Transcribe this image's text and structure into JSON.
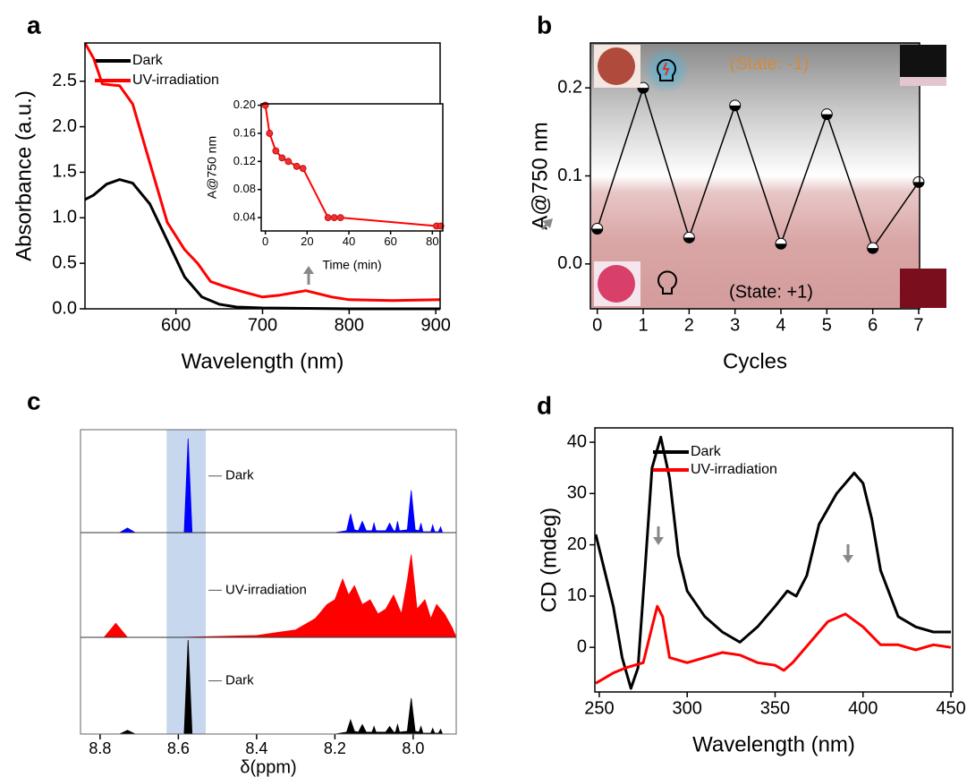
{
  "chart_data": [
    {
      "type": "line",
      "panel": "a",
      "xlabel": "Wavelength (nm)",
      "ylabel": "Absorbance (a.u.)",
      "xlim": [
        495,
        905
      ],
      "ylim": [
        0,
        2.92
      ],
      "xticks": [
        600,
        700,
        800,
        900
      ],
      "yticks": [
        {
          "value": 0,
          "label": "0.0"
        },
        0.5,
        {
          "value": 1,
          "label": "1.0"
        },
        1.5,
        {
          "value": 2,
          "label": "2.0"
        },
        2.5
      ],
      "legend": "upper left",
      "series": [
        {
          "name": "Dark",
          "color": "#000000",
          "x": [
            495,
            505,
            520,
            535,
            550,
            570,
            590,
            610,
            630,
            650,
            670,
            700,
            800,
            905
          ],
          "values": [
            1.2,
            1.25,
            1.37,
            1.42,
            1.38,
            1.15,
            0.75,
            0.35,
            0.13,
            0.05,
            0.02,
            0.01,
            0.0,
            0.0
          ]
        },
        {
          "name": "UV-irradiation",
          "color": "#ff0000",
          "x": [
            495,
            505,
            515,
            535,
            550,
            570,
            590,
            610,
            625,
            640,
            655,
            680,
            700,
            720,
            750,
            780,
            800,
            850,
            905
          ],
          "values": [
            2.92,
            2.75,
            2.47,
            2.45,
            2.25,
            1.6,
            0.95,
            0.65,
            0.5,
            0.3,
            0.25,
            0.18,
            0.13,
            0.15,
            0.2,
            0.13,
            0.1,
            0.09,
            0.1
          ]
        }
      ]
    },
    {
      "type": "line",
      "markers": true,
      "xlabel": "Time (min)",
      "ylabel": "A@750 nm",
      "xlim": [
        -2,
        85
      ],
      "ylim": [
        0.021,
        0.202
      ],
      "xticks": [
        0,
        20,
        40,
        60,
        80
      ],
      "yticks": [
        0.04,
        0.08,
        0.12,
        0.16,
        {
          "value": 0.2,
          "label": "0.20"
        }
      ],
      "series": [
        {
          "color": "#ff0000",
          "x": [
            0,
            2,
            5,
            8,
            11,
            15,
            18,
            30,
            33,
            36,
            82,
            84
          ],
          "values": [
            0.2,
            0.16,
            0.135,
            0.125,
            0.12,
            0.113,
            0.11,
            0.04,
            0.04,
            0.04,
            0.028,
            0.028
          ]
        }
      ]
    },
    {
      "type": "line",
      "markers": true,
      "panel": "b",
      "xlabel": "Cycles",
      "ylabel": "A@750 nm",
      "xlim": [
        -0.15,
        7.02
      ],
      "ylim": [
        -0.051,
        0.251
      ],
      "xticks": [
        0,
        1,
        2,
        3,
        4,
        5,
        6,
        7
      ],
      "yticks": [
        {
          "value": 0,
          "label": "0.0"
        },
        0.1,
        0.2
      ],
      "annotations": [
        "(State: -1)",
        "(State: +1)"
      ],
      "series": [
        {
          "color": "#000000",
          "x": [
            0,
            1,
            2,
            3,
            4,
            5,
            6,
            7
          ],
          "values": [
            0.04,
            0.2,
            0.03,
            0.18,
            0.023,
            0.17,
            0.018,
            0.093
          ]
        }
      ]
    },
    {
      "type": "spectrum",
      "panel": "c",
      "xlabel": "δ(ppm)",
      "xlim": [
        8.85,
        7.89
      ],
      "xticks": [
        8.8,
        8.6,
        8.4,
        8.2,
        {
          "value": 8,
          "label": "8.0"
        }
      ],
      "highlight_range": [
        8.63,
        8.53
      ],
      "series": [
        {
          "name": "Dark",
          "color": "#0000ff",
          "x": [
            8.85,
            8.75,
            8.73,
            8.71,
            8.6,
            8.585,
            8.575,
            8.565,
            8.55,
            8.2,
            8.17,
            8.16,
            8.15,
            8.14,
            8.13,
            8.12,
            8.105,
            8.1,
            8.095,
            8.07,
            8.06,
            8.05,
            8.045,
            8.04,
            8.035,
            8.015,
            8.005,
            7.995,
            7.985,
            7.98,
            7.975,
            7.955,
            7.95,
            7.945,
            7.935,
            7.93,
            7.925,
            7.89
          ],
          "values": [
            0,
            0,
            0.05,
            0,
            0,
            0,
            1,
            0,
            0,
            0,
            0.02,
            0.2,
            0.03,
            0.02,
            0.12,
            0.02,
            0.02,
            0.1,
            0.02,
            0.02,
            0.1,
            0.02,
            0.02,
            0.12,
            0.02,
            0.03,
            0.45,
            0.03,
            0.02,
            0.1,
            0.01,
            0.01,
            0.08,
            0.01,
            0.01,
            0.06,
            0,
            0
          ]
        },
        {
          "name": "UV-irradiation",
          "color": "#ff0000",
          "x": [
            8.85,
            8.79,
            8.76,
            8.73,
            8.6,
            8.4,
            8.3,
            8.25,
            8.22,
            8.2,
            8.18,
            8.165,
            8.15,
            8.13,
            8.11,
            8.09,
            8.07,
            8.05,
            8.03,
            8.015,
            8.005,
            7.99,
            7.97,
            7.955,
            7.94,
            7.92,
            7.9,
            7.89
          ],
          "values": [
            0,
            0,
            0.15,
            0,
            0,
            0.02,
            0.08,
            0.2,
            0.35,
            0.4,
            0.62,
            0.45,
            0.55,
            0.35,
            0.4,
            0.25,
            0.3,
            0.45,
            0.25,
            0.6,
            0.88,
            0.3,
            0.4,
            0.2,
            0.35,
            0.25,
            0.1,
            0
          ]
        },
        {
          "name": "Dark",
          "color": "#000000",
          "x": [
            8.85,
            8.75,
            8.73,
            8.71,
            8.6,
            8.585,
            8.575,
            8.565,
            8.55,
            8.2,
            8.17,
            8.16,
            8.15,
            8.14,
            8.13,
            8.12,
            8.105,
            8.1,
            8.095,
            8.07,
            8.06,
            8.05,
            8.045,
            8.04,
            8.035,
            8.015,
            8.005,
            7.995,
            7.985,
            7.98,
            7.975,
            7.955,
            7.95,
            7.945,
            7.935,
            7.93,
            7.925,
            7.89
          ],
          "values": [
            0,
            0,
            0.04,
            0,
            0,
            0,
            1,
            0,
            0,
            0,
            0.02,
            0.15,
            0.03,
            0.02,
            0.1,
            0.02,
            0.02,
            0.08,
            0.02,
            0.02,
            0.08,
            0.02,
            0.02,
            0.1,
            0.02,
            0.03,
            0.38,
            0.03,
            0.02,
            0.08,
            0.01,
            0.01,
            0.06,
            0.01,
            0.01,
            0.05,
            0,
            0
          ]
        }
      ]
    },
    {
      "type": "line",
      "panel": "d",
      "xlabel": "Wavelength (nm)",
      "ylabel": "CD (mdeg)",
      "xlim": [
        247.5,
        451
      ],
      "ylim": [
        -8.7,
        42.8
      ],
      "xticks": [
        250,
        300,
        350,
        400,
        450
      ],
      "yticks": [
        0,
        10,
        20,
        30,
        40
      ],
      "legend": "upper center",
      "series": [
        {
          "name": "Dark",
          "color": "#000000",
          "x": [
            248,
            258,
            263,
            268,
            272,
            276,
            280,
            285,
            290,
            295,
            300,
            310,
            320,
            330,
            340,
            350,
            357,
            362,
            368,
            375,
            385,
            395,
            400,
            405,
            410,
            420,
            430,
            440,
            450
          ],
          "values": [
            22,
            8,
            -2,
            -8,
            -4,
            15,
            35,
            41,
            33,
            18,
            11,
            6,
            3,
            1,
            4,
            8,
            11,
            10,
            14,
            24,
            30,
            34,
            32,
            25,
            15,
            6,
            4,
            3,
            3
          ]
        },
        {
          "name": "UV-irradiation",
          "color": "#ff0000",
          "x": [
            248,
            258,
            265,
            275,
            280,
            283,
            286,
            290,
            300,
            310,
            320,
            330,
            340,
            350,
            355,
            360,
            370,
            380,
            390,
            400,
            410,
            420,
            430,
            440,
            450
          ],
          "values": [
            -7,
            -5,
            -4,
            -3,
            4,
            8,
            6,
            -2,
            -3,
            -2,
            -1,
            -1.5,
            -3,
            -3.5,
            -4.5,
            -3,
            1,
            5,
            6.5,
            4,
            0.5,
            0.5,
            -0.5,
            0.5,
            0
          ]
        }
      ]
    }
  ]
}
